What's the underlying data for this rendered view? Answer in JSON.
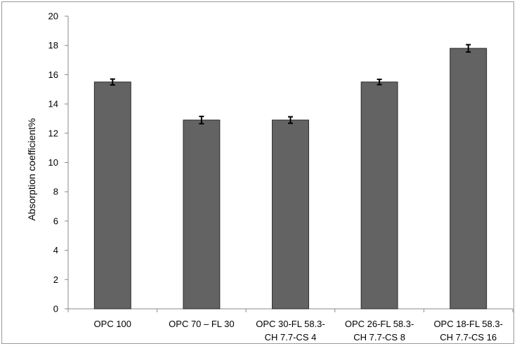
{
  "chart_data": {
    "type": "bar",
    "title": "",
    "xlabel": "",
    "ylabel": "Absorption coefficient%",
    "ylim": [
      0,
      20
    ],
    "yticks": [
      0,
      2,
      4,
      6,
      8,
      10,
      12,
      14,
      16,
      18,
      20
    ],
    "grid": false,
    "legend": "none",
    "bar_color": "#636363",
    "categories": [
      [
        "OPC 100"
      ],
      [
        "OPC 70 – FL 30"
      ],
      [
        "OPC 30-FL 58.3-",
        "CH 7.7-CS 4"
      ],
      [
        "OPC 26-FL 58.3-",
        "CH 7.7-CS 8"
      ],
      [
        "OPC 18-FL 58.3-",
        "CH 7.7-CS 16"
      ]
    ],
    "values": [
      15.5,
      12.9,
      12.9,
      15.5,
      17.8
    ],
    "errors": [
      0.2,
      0.25,
      0.22,
      0.18,
      0.25
    ]
  }
}
